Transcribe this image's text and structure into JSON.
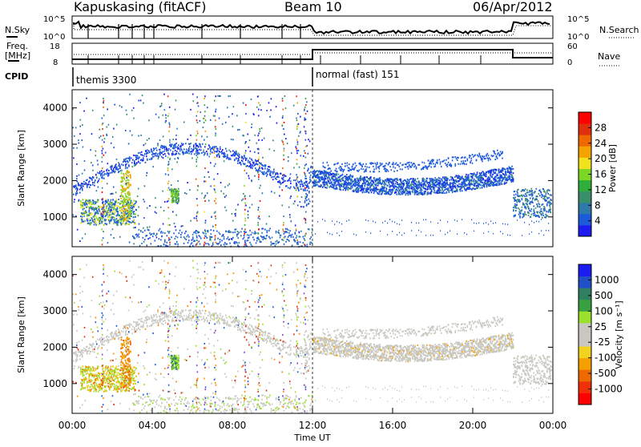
{
  "header": {
    "station": "Kapuskasing (fitACF)",
    "beam": "Beam 10",
    "date": "06/Apr/2012"
  },
  "top_panels": {
    "nsky_label": "N.Sky",
    "nsearch_label": "N.Search",
    "freq_label_line1": "Freq.",
    "freq_label_line2": "[MHz]",
    "nave_label": "Nave",
    "cpid_label": "CPID",
    "count_top": "10^5",
    "count_bottom": "10^0",
    "freq_top": "18",
    "freq_bottom": "8",
    "nave_top": "60",
    "nave_bottom": "0",
    "cpid_segments": [
      {
        "name": "themis 3300",
        "start_hour": 0,
        "end_hour": 12
      },
      {
        "name": "normal (fast) 151",
        "start_hour": 12,
        "end_hour": 24
      }
    ]
  },
  "chart_data": [
    {
      "type": "heatmap",
      "name": "power-panel",
      "ylabel": "Slant Range [km]",
      "xlabel": "",
      "xlim_hours": [
        0,
        24
      ],
      "ylim": [
        180,
        4500
      ],
      "yticks": [
        1000,
        2000,
        3000,
        4000
      ],
      "colorbar": {
        "label": "Power [dB]",
        "ticks": [
          "4",
          "8",
          "12",
          "16",
          "20",
          "24",
          "28"
        ],
        "colors": [
          "#1c1cf0",
          "#1c5adc",
          "#2d7aa8",
          "#3a8f6b",
          "#2fae3a",
          "#7ed624",
          "#f2e21e",
          "#f5a300",
          "#ee6a00",
          "#e03010",
          "#ff0000"
        ]
      }
    },
    {
      "type": "heatmap",
      "name": "velocity-panel",
      "ylabel": "Slant Range [km]",
      "xlabel": "Time UT",
      "xlim_hours": [
        0,
        24
      ],
      "ylim": [
        180,
        4500
      ],
      "yticks": [
        1000,
        2000,
        3000,
        4000
      ],
      "xticks": [
        "00:00",
        "04:00",
        "08:00",
        "12:00",
        "16:00",
        "20:00",
        "00:00"
      ],
      "colorbar": {
        "label": "Velocity [m s⁻¹]",
        "ticks": [
          "1000",
          "500",
          "100",
          "25",
          "-25",
          "-100",
          "-500",
          "-1000"
        ],
        "colors": [
          "#1c1cf0",
          "#2050c8",
          "#2f8060",
          "#38a040",
          "#9be02a",
          "#c8c8c0",
          "#c8c8c0",
          "#f2d21e",
          "#f5a000",
          "#ee6a00",
          "#f03008",
          "#ff0000"
        ]
      }
    }
  ]
}
